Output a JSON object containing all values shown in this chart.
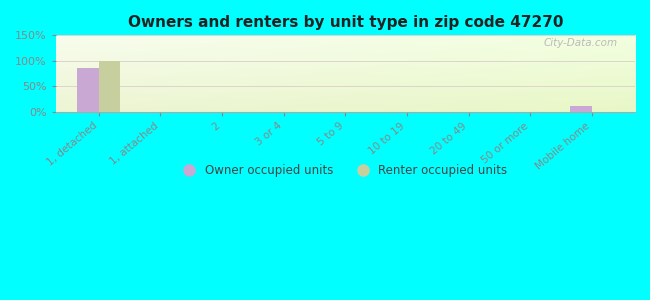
{
  "title": "Owners and renters by unit type in zip code 47270",
  "categories": [
    "1, detached",
    "1, attached",
    "2",
    "3 or 4",
    "5 to 9",
    "10 to 19",
    "20 to 49",
    "50 or more",
    "Mobile home"
  ],
  "owner_values": [
    85,
    0,
    0,
    0,
    0,
    0,
    0,
    0,
    12
  ],
  "renter_values": [
    100,
    0,
    0,
    0,
    0,
    0,
    0,
    0,
    0
  ],
  "owner_color": "#c9a8d4",
  "renter_color": "#c8cf9e",
  "ylim": [
    0,
    150
  ],
  "yticks": [
    0,
    50,
    100,
    150
  ],
  "ytick_labels": [
    "0%",
    "50%",
    "100%",
    "150%"
  ],
  "background_color": "#00ffff",
  "legend_owner": "Owner occupied units",
  "legend_renter": "Renter occupied units",
  "watermark": "City-Data.com",
  "bar_width": 0.35
}
